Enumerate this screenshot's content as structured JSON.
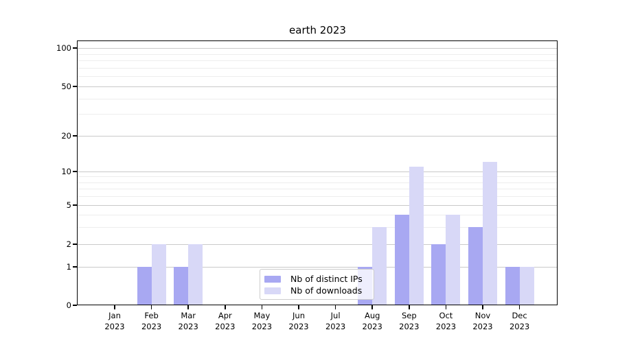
{
  "chart_data": {
    "type": "bar",
    "title": "earth 2023",
    "categories": [
      "Jan 2023",
      "Feb 2023",
      "Mar 2023",
      "Apr 2023",
      "May 2023",
      "Jun 2023",
      "Jul 2023",
      "Aug 2023",
      "Sep 2023",
      "Oct 2023",
      "Nov 2023",
      "Dec 2023"
    ],
    "x": {
      "months": [
        "Jan",
        "Feb",
        "Mar",
        "Apr",
        "May",
        "Jun",
        "Jul",
        "Aug",
        "Sep",
        "Oct",
        "Nov",
        "Dec"
      ],
      "year": "2023"
    },
    "series": [
      {
        "name": "Nb of distinct IPs",
        "color": "#a8a8f2",
        "values": [
          0,
          1,
          1,
          0,
          0,
          0,
          0,
          1,
          4,
          2,
          3,
          1
        ]
      },
      {
        "name": "Nb of downloads",
        "color": "#d8d8f7",
        "values": [
          0,
          2,
          2,
          0,
          0,
          0,
          0,
          3,
          11,
          4,
          12,
          1
        ]
      }
    ],
    "y_axis": {
      "scale": "symlog",
      "major_ticks": [
        0,
        1,
        2,
        5,
        10,
        20,
        50,
        100
      ],
      "y_tick_labels_top_to_bottom": [
        "100",
        "50",
        "20",
        "10",
        "5",
        "2",
        "1",
        "0"
      ],
      "minor_ticks": [
        3,
        4,
        6,
        7,
        8,
        9,
        30,
        40,
        60,
        70,
        80,
        90
      ],
      "ylim": [
        0,
        130
      ],
      "grid": true
    },
    "legend": {
      "position": "lower center",
      "entries": [
        "Nb of distinct IPs",
        "Nb of downloads"
      ]
    }
  },
  "colors": {
    "background": "#ffffff",
    "grid_major": "#c9c9c9",
    "grid_minor": "#ededed",
    "axis": "#000000",
    "text": "#000000",
    "legend_border": "#cccccc",
    "legend_background": "rgba(255,255,255,0.8)"
  }
}
